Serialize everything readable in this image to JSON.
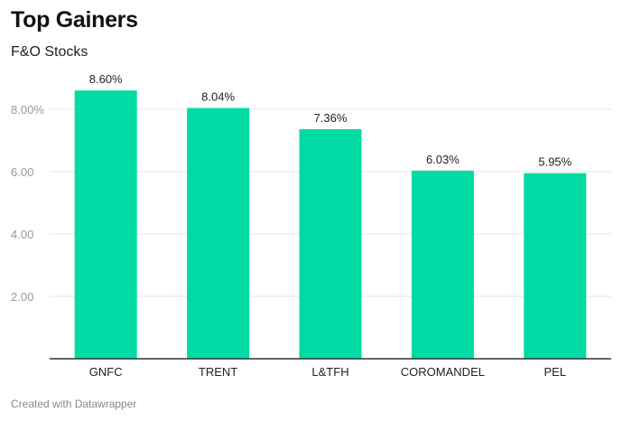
{
  "header": {
    "title": "Top Gainers",
    "subtitle": "F&O Stocks"
  },
  "footer": {
    "credit": "Created with Datawrapper"
  },
  "colors": {
    "bar": "#00dba5",
    "grid": "#e5e5e5",
    "axis": "#333333"
  },
  "chart_data": {
    "type": "bar",
    "title": "Top Gainers",
    "subtitle": "F&O Stocks",
    "categories": [
      "GNFC",
      "TRENT",
      "L&TFH",
      "COROMANDEL",
      "PEL"
    ],
    "values": [
      8.6,
      8.04,
      7.36,
      6.03,
      5.95
    ],
    "value_labels": [
      "8.60%",
      "8.04%",
      "7.36%",
      "6.03%",
      "5.95%"
    ],
    "xlabel": "",
    "ylabel": "",
    "ylim": [
      0,
      9.3
    ],
    "y_ticks": [
      {
        "value": 2,
        "label": "2.00"
      },
      {
        "value": 4,
        "label": "4.00"
      },
      {
        "value": 6,
        "label": "6.00"
      },
      {
        "value": 8,
        "label": "8.00%"
      }
    ],
    "grid": true,
    "legend": "none"
  }
}
